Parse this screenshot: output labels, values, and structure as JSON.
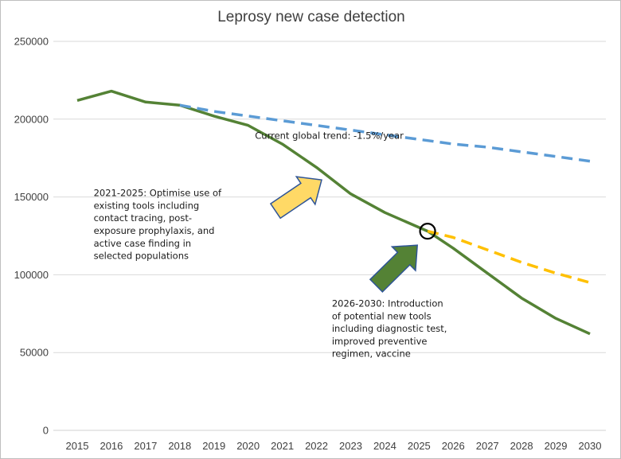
{
  "chart_data": {
    "type": "line",
    "title": "Leprosy new case detection",
    "xlabel": "",
    "ylabel": "",
    "x": [
      2015,
      2016,
      2017,
      2018,
      2019,
      2020,
      2021,
      2022,
      2023,
      2024,
      2025,
      2026,
      2027,
      2028,
      2029,
      2030
    ],
    "ylim": [
      0,
      250000
    ],
    "yticks": [
      0,
      50000,
      100000,
      150000,
      200000,
      250000
    ],
    "grid": true,
    "legend": "none",
    "series": [
      {
        "style": "solid",
        "color": "#548235",
        "points": [
          [
            2015,
            212000
          ],
          [
            2016,
            218000
          ],
          [
            2017,
            211000
          ],
          [
            2018,
            209000
          ],
          [
            2019,
            202000
          ],
          [
            2020,
            196000
          ],
          [
            2021,
            184000
          ],
          [
            2022,
            169000
          ],
          [
            2023,
            152000
          ],
          [
            2024,
            140000
          ],
          [
            2025.25,
            128000
          ],
          [
            2026,
            117000
          ],
          [
            2027,
            101000
          ],
          [
            2028,
            85000
          ],
          [
            2029,
            72000
          ],
          [
            2030,
            62000
          ]
        ]
      },
      {
        "style": "dashed",
        "color": "#5b9bd5",
        "points": [
          [
            2018,
            209000
          ],
          [
            2019,
            205000
          ],
          [
            2020,
            202000
          ],
          [
            2021,
            199000
          ],
          [
            2022,
            196000
          ],
          [
            2023,
            193000
          ],
          [
            2024,
            190000
          ],
          [
            2025,
            187000
          ],
          [
            2026,
            184000
          ],
          [
            2027,
            182000
          ],
          [
            2028,
            179000
          ],
          [
            2029,
            176000
          ],
          [
            2030,
            173000
          ]
        ]
      },
      {
        "style": "dashed",
        "color": "#ffc000",
        "points": [
          [
            2025.25,
            128000
          ],
          [
            2026,
            124000
          ],
          [
            2027,
            116000
          ],
          [
            2028,
            108000
          ],
          [
            2029,
            101000
          ],
          [
            2030,
            95000
          ]
        ]
      }
    ],
    "marker": {
      "x": 2025.25,
      "y": 128000,
      "shape": "circle"
    },
    "annotations": [
      {
        "id": "trend",
        "lines": [
          "Current global trend: -1.5%/year"
        ],
        "at": [
          2020.2,
          187500
        ]
      },
      {
        "id": "phase1",
        "lines": [
          "2021-2025: Optimise use of",
          "existing tools including",
          "contact tracing, post-",
          "exposure prophylaxis, and",
          "active case finding in",
          "selected populations"
        ],
        "at": [
          2015.48,
          150500
        ]
      },
      {
        "id": "phase2",
        "lines": [
          "2026-2030: Introduction",
          "of potential new tools",
          "including diagnostic test,",
          "improved preventive",
          "regimen, vaccine"
        ],
        "at": [
          2022.45,
          79500
        ]
      }
    ],
    "arrows": [
      {
        "id": "yellow-arrow",
        "color": "#ffd966",
        "from": [
          2020.8,
          141000
        ],
        "to": [
          2022.15,
          161000
        ]
      },
      {
        "id": "green-arrow",
        "color": "#548235",
        "from": [
          2023.75,
          93000
        ],
        "to": [
          2024.95,
          119000
        ]
      }
    ]
  }
}
